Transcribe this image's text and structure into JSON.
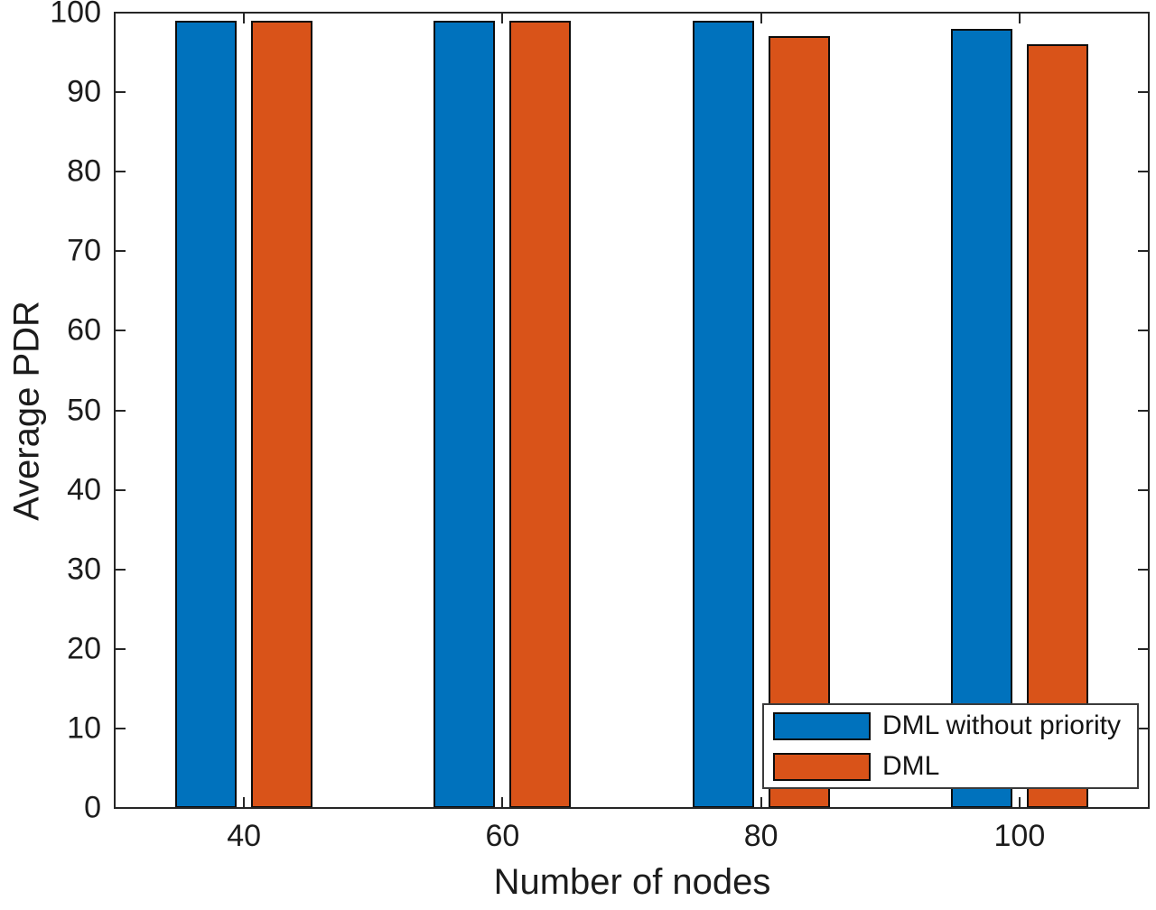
{
  "figure": {
    "background_color": "#ffffff",
    "axis_color": "#262626",
    "text_color": "#1c1c1c"
  },
  "chart_data": {
    "type": "bar",
    "title": "",
    "xlabel": "Number of nodes",
    "ylabel": "Average PDR",
    "categories": [
      "40",
      "60",
      "80",
      "100"
    ],
    "x_values": [
      40,
      60,
      80,
      100
    ],
    "series": [
      {
        "name": "DML without priority",
        "color": "#0072BD",
        "values": [
          99,
          99,
          99,
          98
        ]
      },
      {
        "name": "DML",
        "color": "#D95319",
        "values": [
          99,
          99,
          97,
          96
        ]
      }
    ],
    "ylim": [
      0,
      100
    ],
    "yticks": [
      0,
      10,
      20,
      30,
      40,
      50,
      60,
      70,
      80,
      90,
      100
    ],
    "grid": false,
    "bar_edge_color": "#0c0c0c",
    "legend": {
      "position": "inside-bottom-right",
      "entries": [
        "DML without priority",
        "DML"
      ]
    }
  }
}
